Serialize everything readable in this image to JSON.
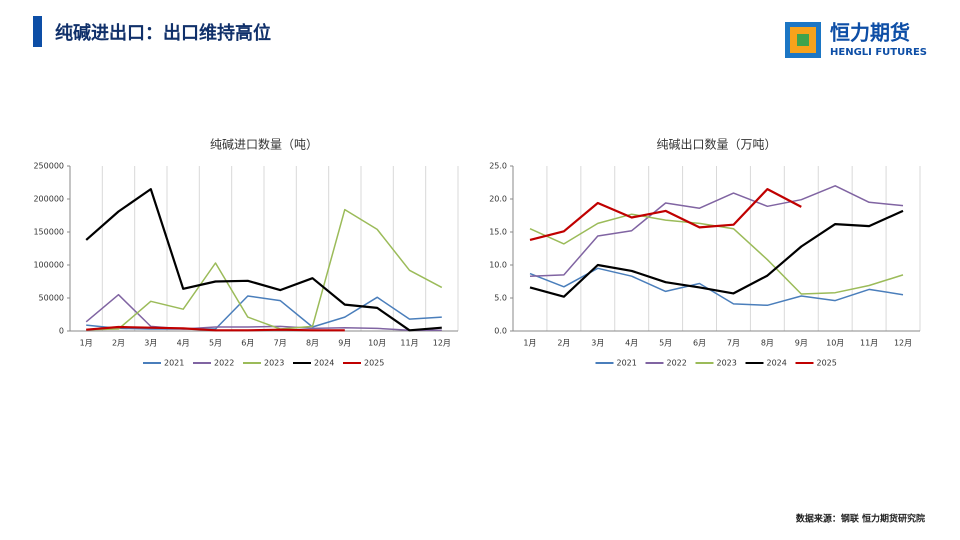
{
  "header": {
    "title": "纯碱进出口：出口维持高位"
  },
  "logo": {
    "name": "恒力期货",
    "subtitle": "HENGLI FUTURES"
  },
  "source": "数据来源：钢联 恒力期货研究院",
  "chart_data": [
    {
      "type": "line",
      "title": "纯碱进口数量（吨）",
      "categories": [
        "1月",
        "2月",
        "3月",
        "4月",
        "5月",
        "6月",
        "7月",
        "8月",
        "9月",
        "10月",
        "11月",
        "12月"
      ],
      "ylim": [
        0,
        250000
      ],
      "yticks": [
        0,
        50000,
        100000,
        150000,
        200000,
        250000
      ],
      "grid": true,
      "legend": "bottom",
      "series": [
        {
          "name": "2021",
          "color": "#4a7ebb",
          "values": [
            9000,
            4000,
            3000,
            3000,
            3000,
            53000,
            46000,
            6000,
            21000,
            51000,
            18000,
            21000
          ]
        },
        {
          "name": "2022",
          "color": "#8064a2",
          "values": [
            14000,
            55000,
            7000,
            3000,
            6000,
            6000,
            7000,
            4000,
            5000,
            4000,
            1000,
            1000
          ]
        },
        {
          "name": "2023",
          "color": "#9bbb59",
          "values": [
            2000,
            3000,
            45000,
            33000,
            103000,
            21000,
            3000,
            7000,
            184000,
            154000,
            92000,
            66000
          ]
        },
        {
          "name": "2024",
          "color": "#000000",
          "values": [
            138000,
            181000,
            215000,
            64000,
            75000,
            76000,
            62000,
            80000,
            40000,
            35000,
            1000,
            5000
          ]
        },
        {
          "name": "2025",
          "color": "#c00000",
          "values": [
            2000,
            6000,
            5000,
            4000,
            1000,
            1000,
            2000,
            1000,
            1000,
            null,
            null,
            null
          ]
        }
      ]
    },
    {
      "type": "line",
      "title": "纯碱出口数量（万吨）",
      "categories": [
        "1月",
        "2月",
        "3月",
        "4月",
        "5月",
        "6月",
        "7月",
        "8月",
        "9月",
        "10月",
        "11月",
        "12月"
      ],
      "ylim": [
        0,
        25
      ],
      "yticks": [
        {
          "value": 0,
          "label": "0.0"
        },
        {
          "value": 5,
          "label": "5.0"
        },
        {
          "value": 10,
          "label": "10.0"
        },
        {
          "value": 15,
          "label": "15.0"
        },
        {
          "value": 20,
          "label": "20.0"
        },
        {
          "value": 25,
          "label": "25.0"
        }
      ],
      "grid": true,
      "legend": "bottom",
      "series": [
        {
          "name": "2021",
          "color": "#4a7ebb",
          "values": [
            8.7,
            6.7,
            9.5,
            8.3,
            6.0,
            7.2,
            4.1,
            3.9,
            5.3,
            4.6,
            6.3,
            5.5
          ]
        },
        {
          "name": "2022",
          "color": "#8064a2",
          "values": [
            8.3,
            8.5,
            14.4,
            15.2,
            19.4,
            18.6,
            20.9,
            18.9,
            19.9,
            22.0,
            19.5,
            19.0
          ]
        },
        {
          "name": "2023",
          "color": "#9bbb59",
          "values": [
            15.5,
            13.2,
            16.3,
            17.7,
            16.8,
            16.3,
            15.5,
            10.8,
            5.6,
            5.8,
            6.9,
            8.5
          ]
        },
        {
          "name": "2024",
          "color": "#000000",
          "values": [
            6.6,
            5.2,
            10.0,
            9.1,
            7.4,
            6.6,
            5.7,
            8.4,
            12.8,
            16.2,
            15.9,
            18.2
          ]
        },
        {
          "name": "2025",
          "color": "#c00000",
          "values": [
            13.8,
            15.1,
            19.4,
            17.2,
            18.2,
            15.7,
            16.1,
            21.5,
            18.8,
            null,
            null,
            null
          ]
        }
      ]
    }
  ]
}
